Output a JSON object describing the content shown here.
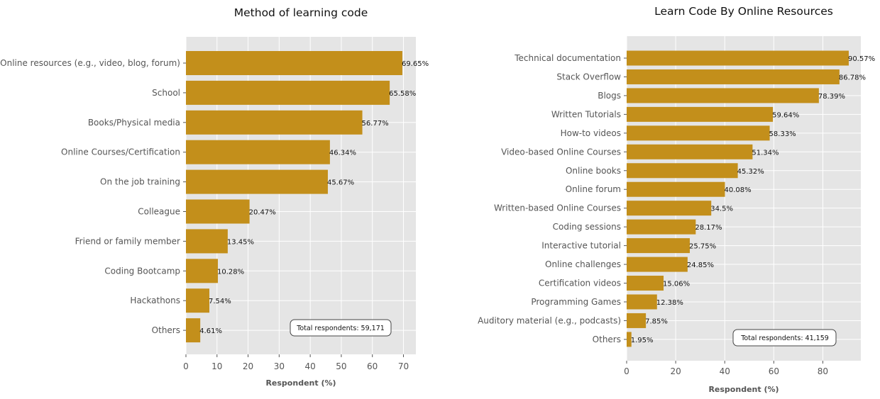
{
  "colors": {
    "bar": "#c38f1b",
    "plot_bg": "#e5e5e5",
    "grid": "#ffffff",
    "tick": "#555555"
  },
  "chart_data": [
    {
      "type": "bar",
      "orientation": "horizontal",
      "title": "Method of learning code",
      "xlabel": "Respondent (%)",
      "ylabel": "",
      "xlim": [
        0,
        74
      ],
      "xticks": [
        0,
        10,
        20,
        30,
        40,
        50,
        60,
        70
      ],
      "grid": true,
      "categories": [
        "Online resources (e.g., video, blog, forum)",
        "School",
        "Books/Physical media",
        "Online Courses/Certification",
        "On the job training",
        "Colleague",
        "Friend or family member",
        "Coding Bootcamp",
        "Hackathons",
        "Others"
      ],
      "values": [
        69.65,
        65.58,
        56.77,
        46.34,
        45.67,
        20.47,
        13.45,
        10.28,
        7.54,
        4.61
      ],
      "data_labels": [
        "69.65%",
        "65.58%",
        "56.77%",
        "46.34%",
        "45.67%",
        "20.47%",
        "13.45%",
        "10.28%",
        "7.54%",
        "4.61%"
      ],
      "annotation": "Total respondents: 59,171",
      "annotation_placement": "bottom-right"
    },
    {
      "type": "bar",
      "orientation": "horizontal",
      "title": "Learn Code By Online Resources",
      "xlabel": "Respondent (%)",
      "ylabel": "",
      "xlim": [
        0,
        95.5
      ],
      "xticks": [
        0,
        20,
        40,
        60,
        80
      ],
      "grid": true,
      "categories": [
        "Technical documentation",
        "Stack Overflow",
        "Blogs",
        "Written Tutorials",
        "How-to videos",
        "Video-based Online Courses",
        "Online books",
        "Online forum",
        "Written-based Online Courses",
        "Coding sessions",
        "Interactive tutorial",
        "Online challenges",
        "Certification videos",
        "Programming Games",
        "Auditory material (e.g., podcasts)",
        "Others"
      ],
      "values": [
        90.57,
        86.78,
        78.39,
        59.64,
        58.33,
        51.34,
        45.32,
        40.08,
        34.5,
        28.17,
        25.75,
        24.85,
        15.06,
        12.38,
        7.85,
        1.95
      ],
      "data_labels": [
        "90.57%",
        "86.78%",
        "78.39%",
        "59.64%",
        "58.33%",
        "51.34%",
        "45.32%",
        "40.08%",
        "34.5%",
        "28.17%",
        "25.75%",
        "24.85%",
        "15.06%",
        "12.38%",
        "7.85%",
        "1.95%"
      ],
      "annotation": "Total respondents: 41,159",
      "annotation_placement": "bottom-right"
    }
  ]
}
